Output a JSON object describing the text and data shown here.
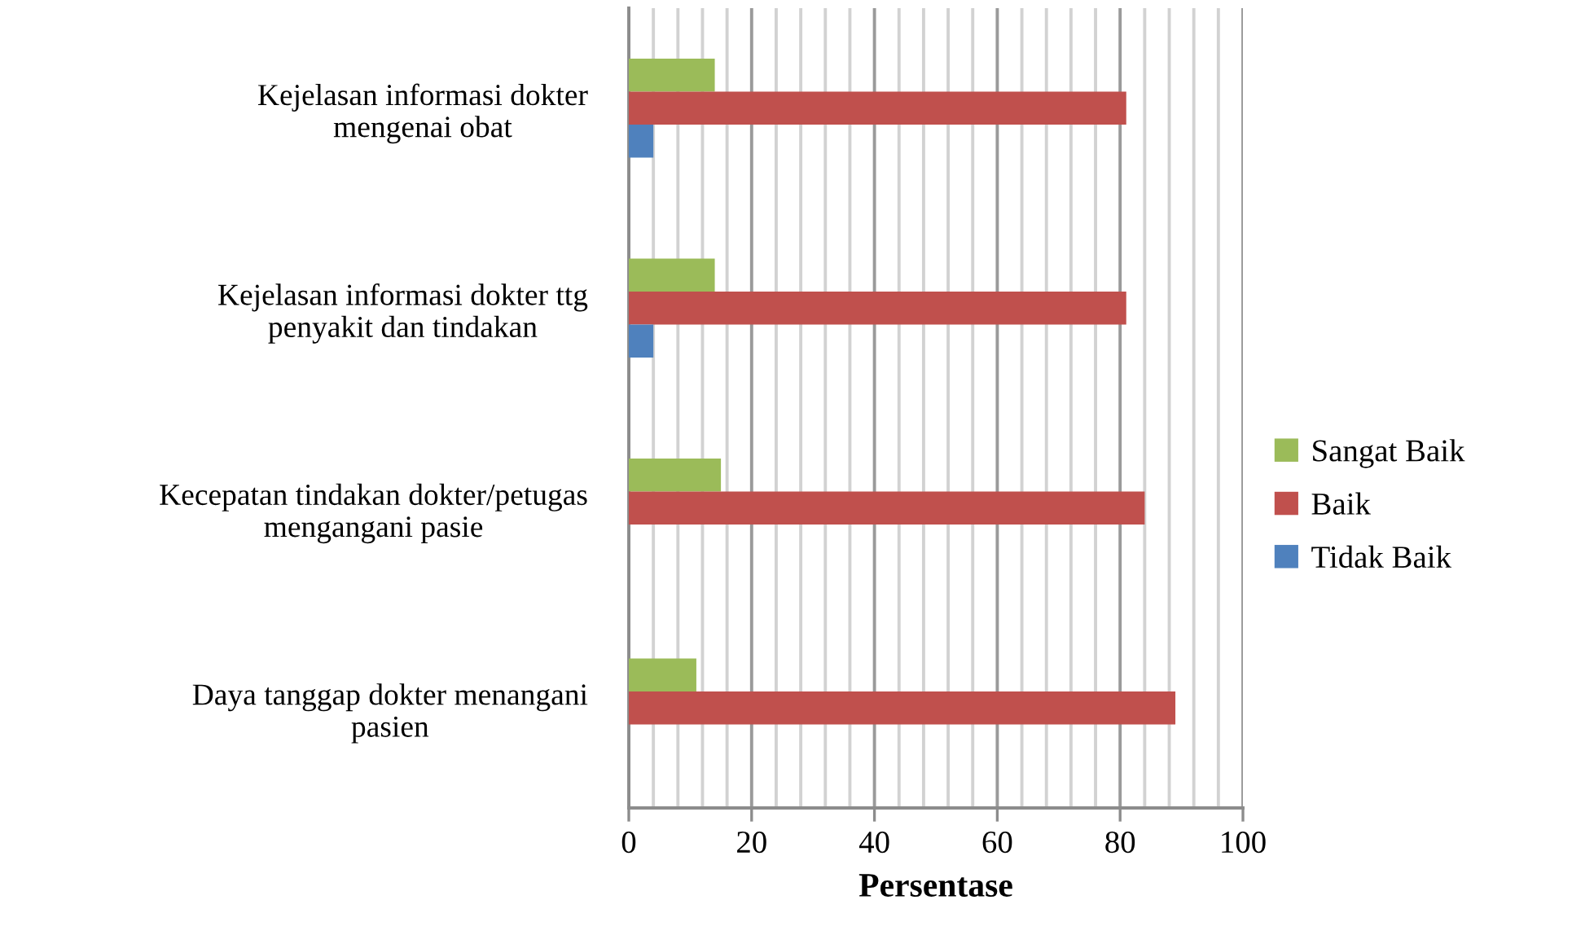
{
  "chart_data": {
    "type": "bar",
    "orientation": "horizontal",
    "xlabel": "Persentase",
    "categories": [
      "Kejelasan informasi dokter\nmengenai obat",
      "Kejelasan informasi dokter ttg\npenyakit dan tindakan",
      "Kecepatan tindakan dokter/petugas\nmengangani pasie",
      "Daya tanggap dokter menangani\npasien"
    ],
    "series": [
      {
        "name": "Sangat Baik",
        "color": "#9bbb59",
        "values": [
          14,
          14,
          15,
          11
        ]
      },
      {
        "name": "Baik",
        "color": "#c0504d",
        "values": [
          81,
          81,
          84,
          89
        ]
      },
      {
        "name": "Tidak Baik",
        "color": "#4f81bd",
        "values": [
          4,
          4,
          0,
          0
        ]
      }
    ],
    "xlim": [
      0,
      100
    ],
    "xticks": [
      0,
      {
        "value": 4,
        "label": null
      },
      {
        "value": 8,
        "label": null
      },
      {
        "value": 12,
        "label": null
      },
      {
        "value": 16,
        "label": null
      },
      20,
      {
        "value": 24,
        "label": null
      },
      {
        "value": 28,
        "label": null
      },
      {
        "value": 32,
        "label": null
      },
      {
        "value": 36,
        "label": null
      },
      40,
      {
        "value": 44,
        "label": null
      },
      {
        "value": 48,
        "label": null
      },
      {
        "value": 52,
        "label": null
      },
      {
        "value": 56,
        "label": null
      },
      60,
      {
        "value": 64,
        "label": null
      },
      {
        "value": 68,
        "label": null
      },
      {
        "value": 72,
        "label": null
      },
      {
        "value": 76,
        "label": null
      },
      80,
      {
        "value": 84,
        "label": null
      },
      {
        "value": 88,
        "label": null
      },
      {
        "value": 92,
        "label": null
      },
      {
        "value": 96,
        "label": null
      },
      100
    ],
    "grid": "x",
    "legend": "right"
  }
}
